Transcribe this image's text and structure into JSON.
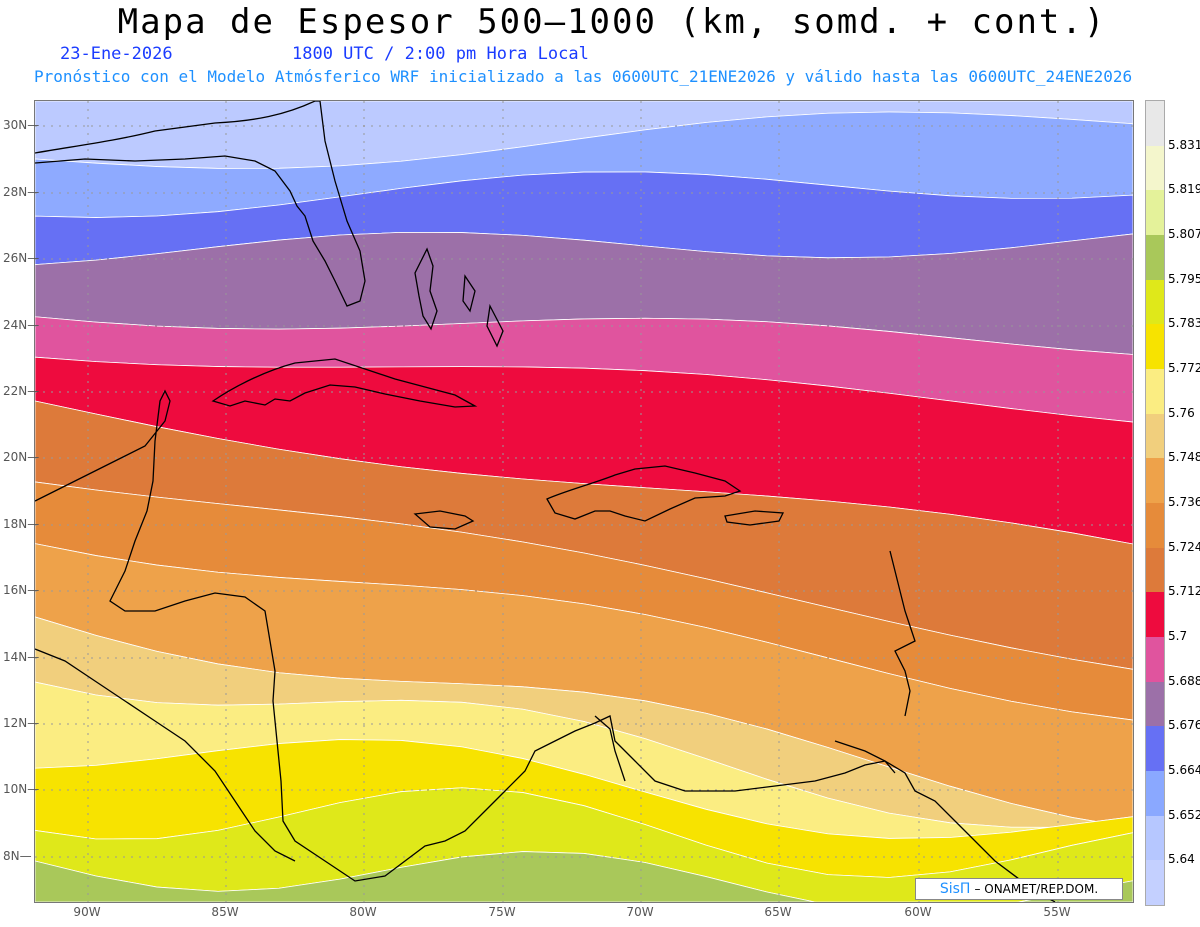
{
  "header": {
    "title": "Mapa de Espesor 500—1000 (km, somd. + cont.)",
    "date": "23-Ene-2026",
    "utc": "1800 UTC / 2:00 pm Hora Local",
    "subtitle": "Pronóstico con el Modelo Atmósferico WRF inicializado a las 0600UTC_21ENE2026 y válido hasta las  0600UTC_24ENE2026"
  },
  "axes": {
    "lat_labels": [
      "30N",
      "28N",
      "26N",
      "24N",
      "22N",
      "20N",
      "18N",
      "16N",
      "14N",
      "12N",
      "10N",
      "8N"
    ],
    "lon_labels": [
      "90W",
      "85W",
      "80W",
      "75W",
      "70W",
      "65W",
      "60W",
      "55W"
    ]
  },
  "colorbar": {
    "labels": [
      "5.831",
      "5.819",
      "5.807",
      "5.795",
      "5.783",
      "5.772",
      "5.76",
      "5.748",
      "5.736",
      "5.724",
      "5.712",
      "5.7",
      "5.688",
      "5.676",
      "5.664",
      "5.652",
      "5.64"
    ],
    "colors": [
      "#e8e8e8",
      "#f4f6cc",
      "#e4f29a",
      "#a9c85a",
      "#dfe81a",
      "#f7e300",
      "#fbed82",
      "#f1cf7d",
      "#eea24a",
      "#e68b3a",
      "#dd7a3a",
      "#ee0b3e",
      "#e0549e",
      "#9c70a8",
      "#6670f4",
      "#8aa8ff",
      "#b6c7ff",
      "#c4d0ff"
    ]
  },
  "map": {
    "band_colors": [
      "#bccaff",
      "#8eaaff",
      "#6670f4",
      "#9c70a8",
      "#e0549e",
      "#ee0b3e",
      "#dd7a3a",
      "#e68b3a",
      "#eea24a",
      "#f1cf7d",
      "#fbed82",
      "#f7e300",
      "#dfe81a",
      "#a9c85a"
    ]
  },
  "credit": {
    "brand": "SisΠ",
    "text": " – ONAMET/REP.DOM."
  }
}
